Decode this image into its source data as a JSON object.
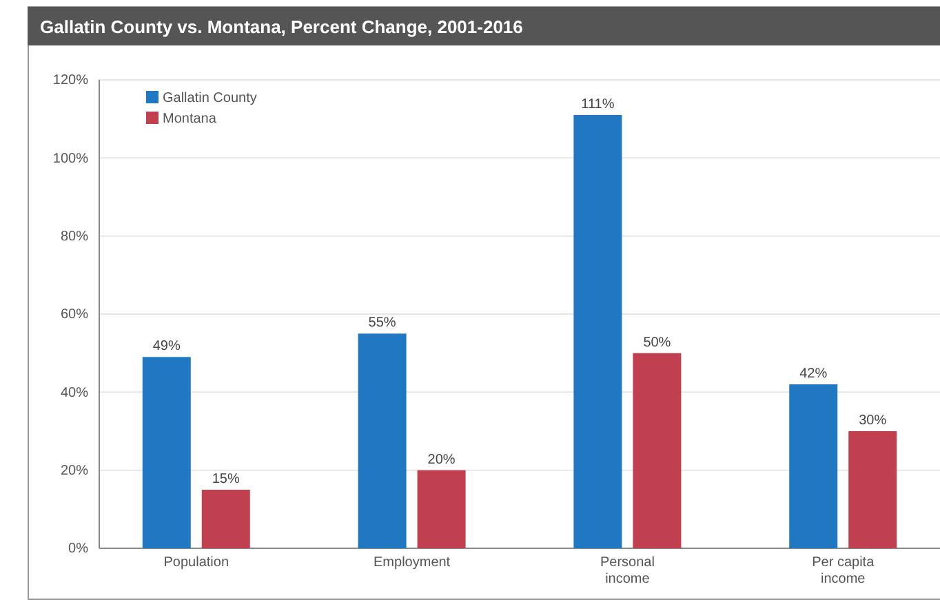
{
  "chart_data": {
    "type": "bar",
    "title": "Gallatin County vs. Montana, Percent Change, 2001-2016",
    "categories": [
      "Population",
      "Employment",
      "Personal income",
      "Per capita income"
    ],
    "series": [
      {
        "name": "Gallatin County",
        "color": "#1f78c1",
        "values": [
          49,
          55,
          111,
          42
        ]
      },
      {
        "name": "Montana",
        "color": "#c0404f",
        "values": [
          15,
          20,
          50,
          30
        ]
      }
    ],
    "ylim": [
      0,
      120
    ],
    "yticks": [
      {
        "value": 0,
        "label": "0%"
      },
      {
        "value": 20,
        "label": "20%"
      },
      {
        "value": 40,
        "label": "40%"
      },
      {
        "value": 60,
        "label": "60%"
      },
      {
        "value": 80,
        "label": "80%"
      },
      {
        "value": 100,
        "label": "100%"
      },
      {
        "value": 120,
        "label": "120%"
      }
    ],
    "value_labels": [
      [
        "49%",
        "55%",
        "111%",
        "42%"
      ],
      [
        "15%",
        "20%",
        "50%",
        "30%"
      ]
    ],
    "grid": "y",
    "legend": "top left"
  }
}
